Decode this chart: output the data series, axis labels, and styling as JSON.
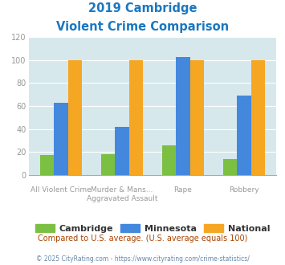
{
  "title_line1": "2019 Cambridge",
  "title_line2": "Violent Crime Comparison",
  "title_color": "#1a78c2",
  "cambridge": [
    17,
    18,
    26,
    14
  ],
  "minnesota": [
    63,
    42,
    103,
    69
  ],
  "national": [
    100,
    100,
    100,
    100
  ],
  "cambridge_color": "#7bc043",
  "minnesota_color": "#4488dd",
  "national_color": "#f5a623",
  "ylim": [
    0,
    120
  ],
  "yticks": [
    0,
    20,
    40,
    60,
    80,
    100,
    120
  ],
  "plot_bg": "#d6e8ec",
  "grid_color": "#ffffff",
  "top_labels": [
    "",
    "Murder & Mans...",
    "Rape",
    ""
  ],
  "bot_labels": [
    "All Violent Crime",
    "Aggravated Assault",
    "",
    "Robbery"
  ],
  "footer_text": "Compared to U.S. average. (U.S. average equals 100)",
  "footer_color": "#aa4400",
  "copyright_text": "© 2025 CityRating.com - https://www.cityrating.com/crime-statistics/",
  "copyright_color": "#6688aa",
  "legend_labels": [
    "Cambridge",
    "Minnesota",
    "National"
  ]
}
